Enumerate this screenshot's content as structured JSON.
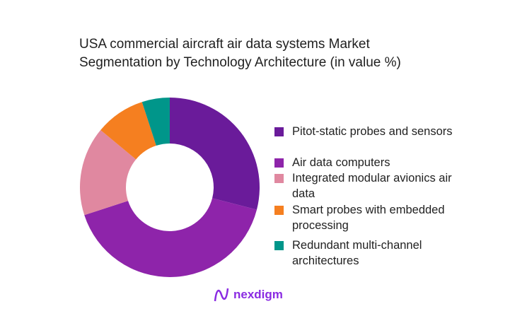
{
  "chart_data": {
    "type": "pie",
    "donut": true,
    "title": [
      "USA commercial aircraft air data systems Market",
      "Segmentation by Technology Architecture (in value %)"
    ],
    "categories": [
      "Pitot-static probes and sensors",
      "Air data computers",
      "Integrated modular avionics air data",
      "Smart probes with embedded processing",
      "Redundant multi-channel architectures"
    ],
    "values": [
      29,
      41,
      16,
      9,
      5
    ],
    "colors": [
      "#6a1b9a",
      "#8e24aa",
      "#e088a0",
      "#f57f20",
      "#00968a"
    ],
    "legend_position": "right"
  },
  "logo": {
    "text": "nexdigm"
  }
}
